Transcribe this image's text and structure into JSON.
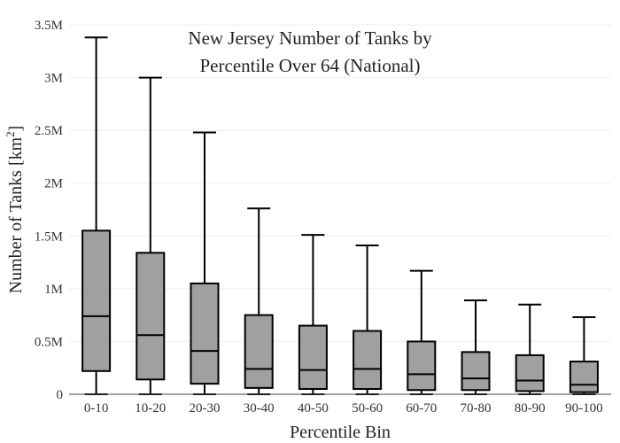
{
  "chart_data": {
    "type": "box",
    "title_lines": [
      "New Jersey Number of Tanks by",
      "Percentile Over 64 (National)"
    ],
    "xlabel": "Percentile Bin",
    "ylabel_main": "Number of Tanks  [km",
    "ylabel_sup": "2",
    "ylabel_end": "]",
    "ylim": [
      0,
      3500000
    ],
    "yticks": [
      {
        "value": 0,
        "label": "0"
      },
      {
        "value": 500000,
        "label": "0.5M"
      },
      {
        "value": 1000000,
        "label": "1M"
      },
      {
        "value": 1500000,
        "label": "1.5M"
      },
      {
        "value": 2000000,
        "label": "2M"
      },
      {
        "value": 2500000,
        "label": "2.5M"
      },
      {
        "value": 3000000,
        "label": "3M"
      },
      {
        "value": 3500000,
        "label": "3.5M"
      }
    ],
    "grid": true,
    "box_fill": "#a0a0a0",
    "line_color": "#000000",
    "categories": [
      "0-10",
      "10-20",
      "20-30",
      "30-40",
      "40-50",
      "50-60",
      "60-70",
      "70-80",
      "80-90",
      "90-100"
    ],
    "boxes": [
      {
        "min": 0,
        "q1": 220000,
        "median": 740000,
        "q3": 1550000,
        "max": 3380000
      },
      {
        "min": 0,
        "q1": 140000,
        "median": 560000,
        "q3": 1340000,
        "max": 3000000
      },
      {
        "min": 0,
        "q1": 100000,
        "median": 410000,
        "q3": 1050000,
        "max": 2480000
      },
      {
        "min": 0,
        "q1": 60000,
        "median": 240000,
        "q3": 750000,
        "max": 1760000
      },
      {
        "min": 0,
        "q1": 50000,
        "median": 230000,
        "q3": 650000,
        "max": 1510000
      },
      {
        "min": 0,
        "q1": 50000,
        "median": 240000,
        "q3": 600000,
        "max": 1410000
      },
      {
        "min": 0,
        "q1": 40000,
        "median": 190000,
        "q3": 500000,
        "max": 1170000
      },
      {
        "min": 0,
        "q1": 40000,
        "median": 150000,
        "q3": 400000,
        "max": 890000
      },
      {
        "min": 0,
        "q1": 30000,
        "median": 130000,
        "q3": 370000,
        "max": 850000
      },
      {
        "min": 0,
        "q1": 20000,
        "median": 90000,
        "q3": 310000,
        "max": 730000
      }
    ]
  }
}
